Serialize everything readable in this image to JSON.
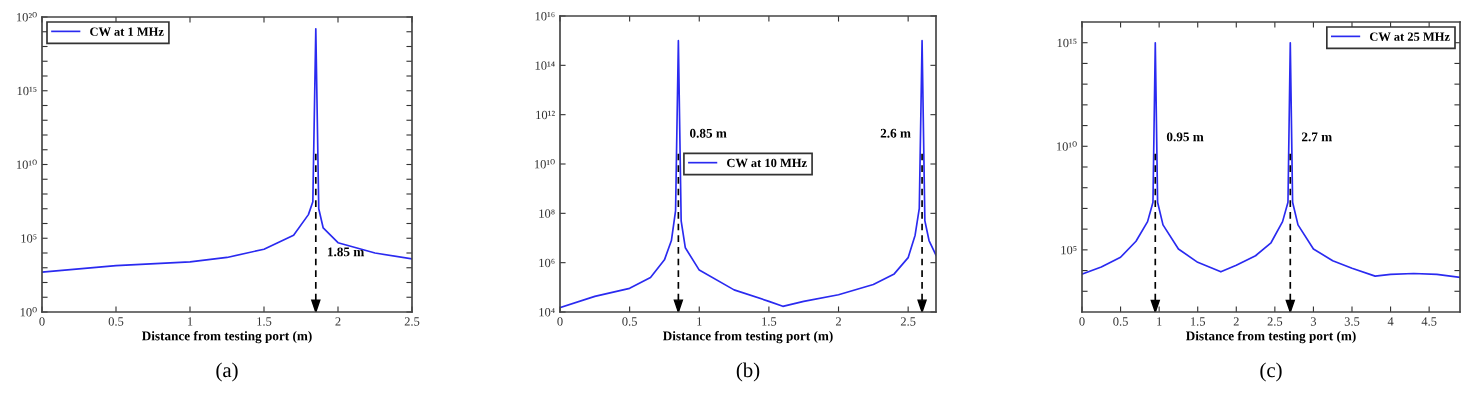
{
  "chart_data": [
    {
      "type": "line",
      "title": "(a)",
      "xlabel": "Distance from testing port (m)",
      "log": "y",
      "legend": "top left",
      "x": [
        0,
        0.5,
        1.0,
        1.25,
        1.5,
        1.7,
        1.8,
        1.83,
        1.85,
        1.87,
        1.9,
        2.0,
        2.25,
        2.5
      ],
      "series": [
        {
          "name": "CW at 1 MHz",
          "color": "#2a2af0",
          "values": [
            500.0,
            1400.0,
            2500.0,
            5000.0,
            18000.0,
            160000.0,
            4000000.0,
            30000000.0,
            1.6e+19,
            10000000.0,
            500000.0,
            50000.0,
            10000.0,
            4000.0
          ]
        }
      ],
      "xlim": [
        0,
        2.5
      ],
      "xticks": [
        0,
        0.5,
        1,
        1.5,
        2,
        2.5
      ],
      "ylim": [
        1,
        1e+20
      ],
      "yticks": [
        {
          "value": 1,
          "label": "10⁰"
        },
        {
          "value": 10.0,
          "label": null
        },
        {
          "value": 100.0,
          "label": null
        },
        {
          "value": 1000.0,
          "label": null
        },
        {
          "value": 10000.0,
          "label": null
        },
        {
          "value": 100000.0,
          "label": "10⁵"
        },
        {
          "value": 1000000.0,
          "label": null
        },
        {
          "value": 10000000.0,
          "label": null
        },
        {
          "value": 100000000.0,
          "label": null
        },
        {
          "value": 1000000000.0,
          "label": null
        },
        {
          "value": 10000000000.0,
          "label": "10¹⁰"
        },
        {
          "value": 100000000000.0,
          "label": null
        },
        {
          "value": 1000000000000.0,
          "label": null
        },
        {
          "value": 10000000000000.0,
          "label": null
        },
        {
          "value": 100000000000000.0,
          "label": null
        },
        {
          "value": 1000000000000000.0,
          "label": "10¹⁵"
        },
        {
          "value": 1e+16,
          "label": null
        },
        {
          "value": 1e+17,
          "label": null
        },
        {
          "value": 1e+18,
          "label": null
        },
        {
          "value": 1e+19,
          "label": null
        },
        {
          "value": 1e+20,
          "label": "10²⁰"
        }
      ],
      "ref_lines": [
        {
          "axis": "x",
          "value": 1.85,
          "label": "1.85 m",
          "line_style": "dashed"
        }
      ]
    },
    {
      "type": "line",
      "title": "(b)",
      "xlabel": "Distance from testing port (m)",
      "log": "y",
      "legend": "center",
      "x": [
        0,
        0.25,
        0.5,
        0.65,
        0.75,
        0.8,
        0.83,
        0.85,
        0.87,
        0.9,
        1.0,
        1.25,
        1.5,
        1.6,
        1.75,
        2.0,
        2.25,
        2.4,
        2.5,
        2.55,
        2.58,
        2.6,
        2.62,
        2.65,
        2.7
      ],
      "series": [
        {
          "name": "CW at 10 MHz",
          "color": "#2a2af0",
          "values": [
            15000.0,
            43000.0,
            91000.0,
            250000.0,
            1300000.0,
            7900000.0,
            130000000.0,
            1000000000000000.0,
            50000000.0,
            4000000.0,
            500000.0,
            79000.0,
            27000.0,
            17000.0,
            27000.0,
            50000.0,
            130000.0,
            350000.0,
            1600000.0,
            13000000.0,
            160000000.0,
            1000000000000000.0,
            50000000.0,
            7900000.0,
            2000000.0
          ]
        }
      ],
      "xlim": [
        0,
        2.7
      ],
      "xticks": [
        0,
        0.5,
        1,
        1.5,
        2,
        2.5
      ],
      "ylim": [
        10000.0,
        1e+16
      ],
      "yticks": [
        {
          "value": 10000.0,
          "label": "10⁴"
        },
        {
          "value": 1000000.0,
          "label": "10⁶"
        },
        {
          "value": 100000000.0,
          "label": "10⁸"
        },
        {
          "value": 10000000000.0,
          "label": "10¹⁰"
        },
        {
          "value": 1000000000000.0,
          "label": "10¹²"
        },
        {
          "value": 100000000000000.0,
          "label": "10¹⁴"
        },
        {
          "value": 1e+16,
          "label": "10¹⁶"
        }
      ],
      "ref_lines": [
        {
          "axis": "x",
          "value": 0.85,
          "label": "0.85 m",
          "line_style": "dashed"
        },
        {
          "axis": "x",
          "value": 2.6,
          "label": "2.6 m",
          "line_style": "dashed"
        }
      ]
    },
    {
      "type": "line",
      "title": "(c)",
      "xlabel": "Distance from testing port (m)",
      "log": "y",
      "legend": "top right",
      "x": [
        0,
        0.25,
        0.5,
        0.7,
        0.85,
        0.92,
        0.95,
        0.98,
        1.05,
        1.25,
        1.5,
        1.8,
        2.0,
        2.25,
        2.45,
        2.6,
        2.67,
        2.7,
        2.73,
        2.8,
        3.0,
        3.25,
        3.5,
        3.8,
        4.0,
        4.3,
        4.6,
        4.9
      ],
      "series": [
        {
          "name": "CW at 25 MHz",
          "color": "#2a2af0",
          "values": [
            6800.0,
            15000.0,
            44000.0,
            260000.0,
            2300000.0,
            20000000.0,
            1000000000000000.0,
            20000000.0,
            1600000.0,
            110000.0,
            25000.0,
            8700.0,
            18000.0,
            52000.0,
            220000.0,
            2300000.0,
            20000000.0,
            1000000000000000.0,
            20000000.0,
            1600000.0,
            110000.0,
            30000.0,
            13000.0,
            5400.0,
            6500.0,
            7200.0,
            6500.0,
            4700.0
          ]
        }
      ],
      "xlim": [
        0,
        4.9
      ],
      "xticks": [
        0,
        0.5,
        1,
        1.5,
        2,
        2.5,
        3,
        3.5,
        4,
        4.5
      ],
      "ylim": [
        100.0,
        1e+16
      ],
      "yticks": [
        {
          "value": 1000.0,
          "label": null
        },
        {
          "value": 10000.0,
          "label": null
        },
        {
          "value": 100000.0,
          "label": "10⁵"
        },
        {
          "value": 1000000.0,
          "label": null
        },
        {
          "value": 10000000.0,
          "label": null
        },
        {
          "value": 100000000.0,
          "label": null
        },
        {
          "value": 1000000000.0,
          "label": null
        },
        {
          "value": 10000000000.0,
          "label": "10¹⁰"
        },
        {
          "value": 100000000000.0,
          "label": null
        },
        {
          "value": 1000000000000.0,
          "label": null
        },
        {
          "value": 10000000000000.0,
          "label": null
        },
        {
          "value": 100000000000000.0,
          "label": null
        },
        {
          "value": 1000000000000000.0,
          "label": "10¹⁵"
        }
      ],
      "ref_lines": [
        {
          "axis": "x",
          "value": 0.95,
          "label": "0.95 m",
          "line_style": "dashed"
        },
        {
          "axis": "x",
          "value": 2.7,
          "label": "2.7 m",
          "line_style": "dashed"
        }
      ]
    }
  ]
}
